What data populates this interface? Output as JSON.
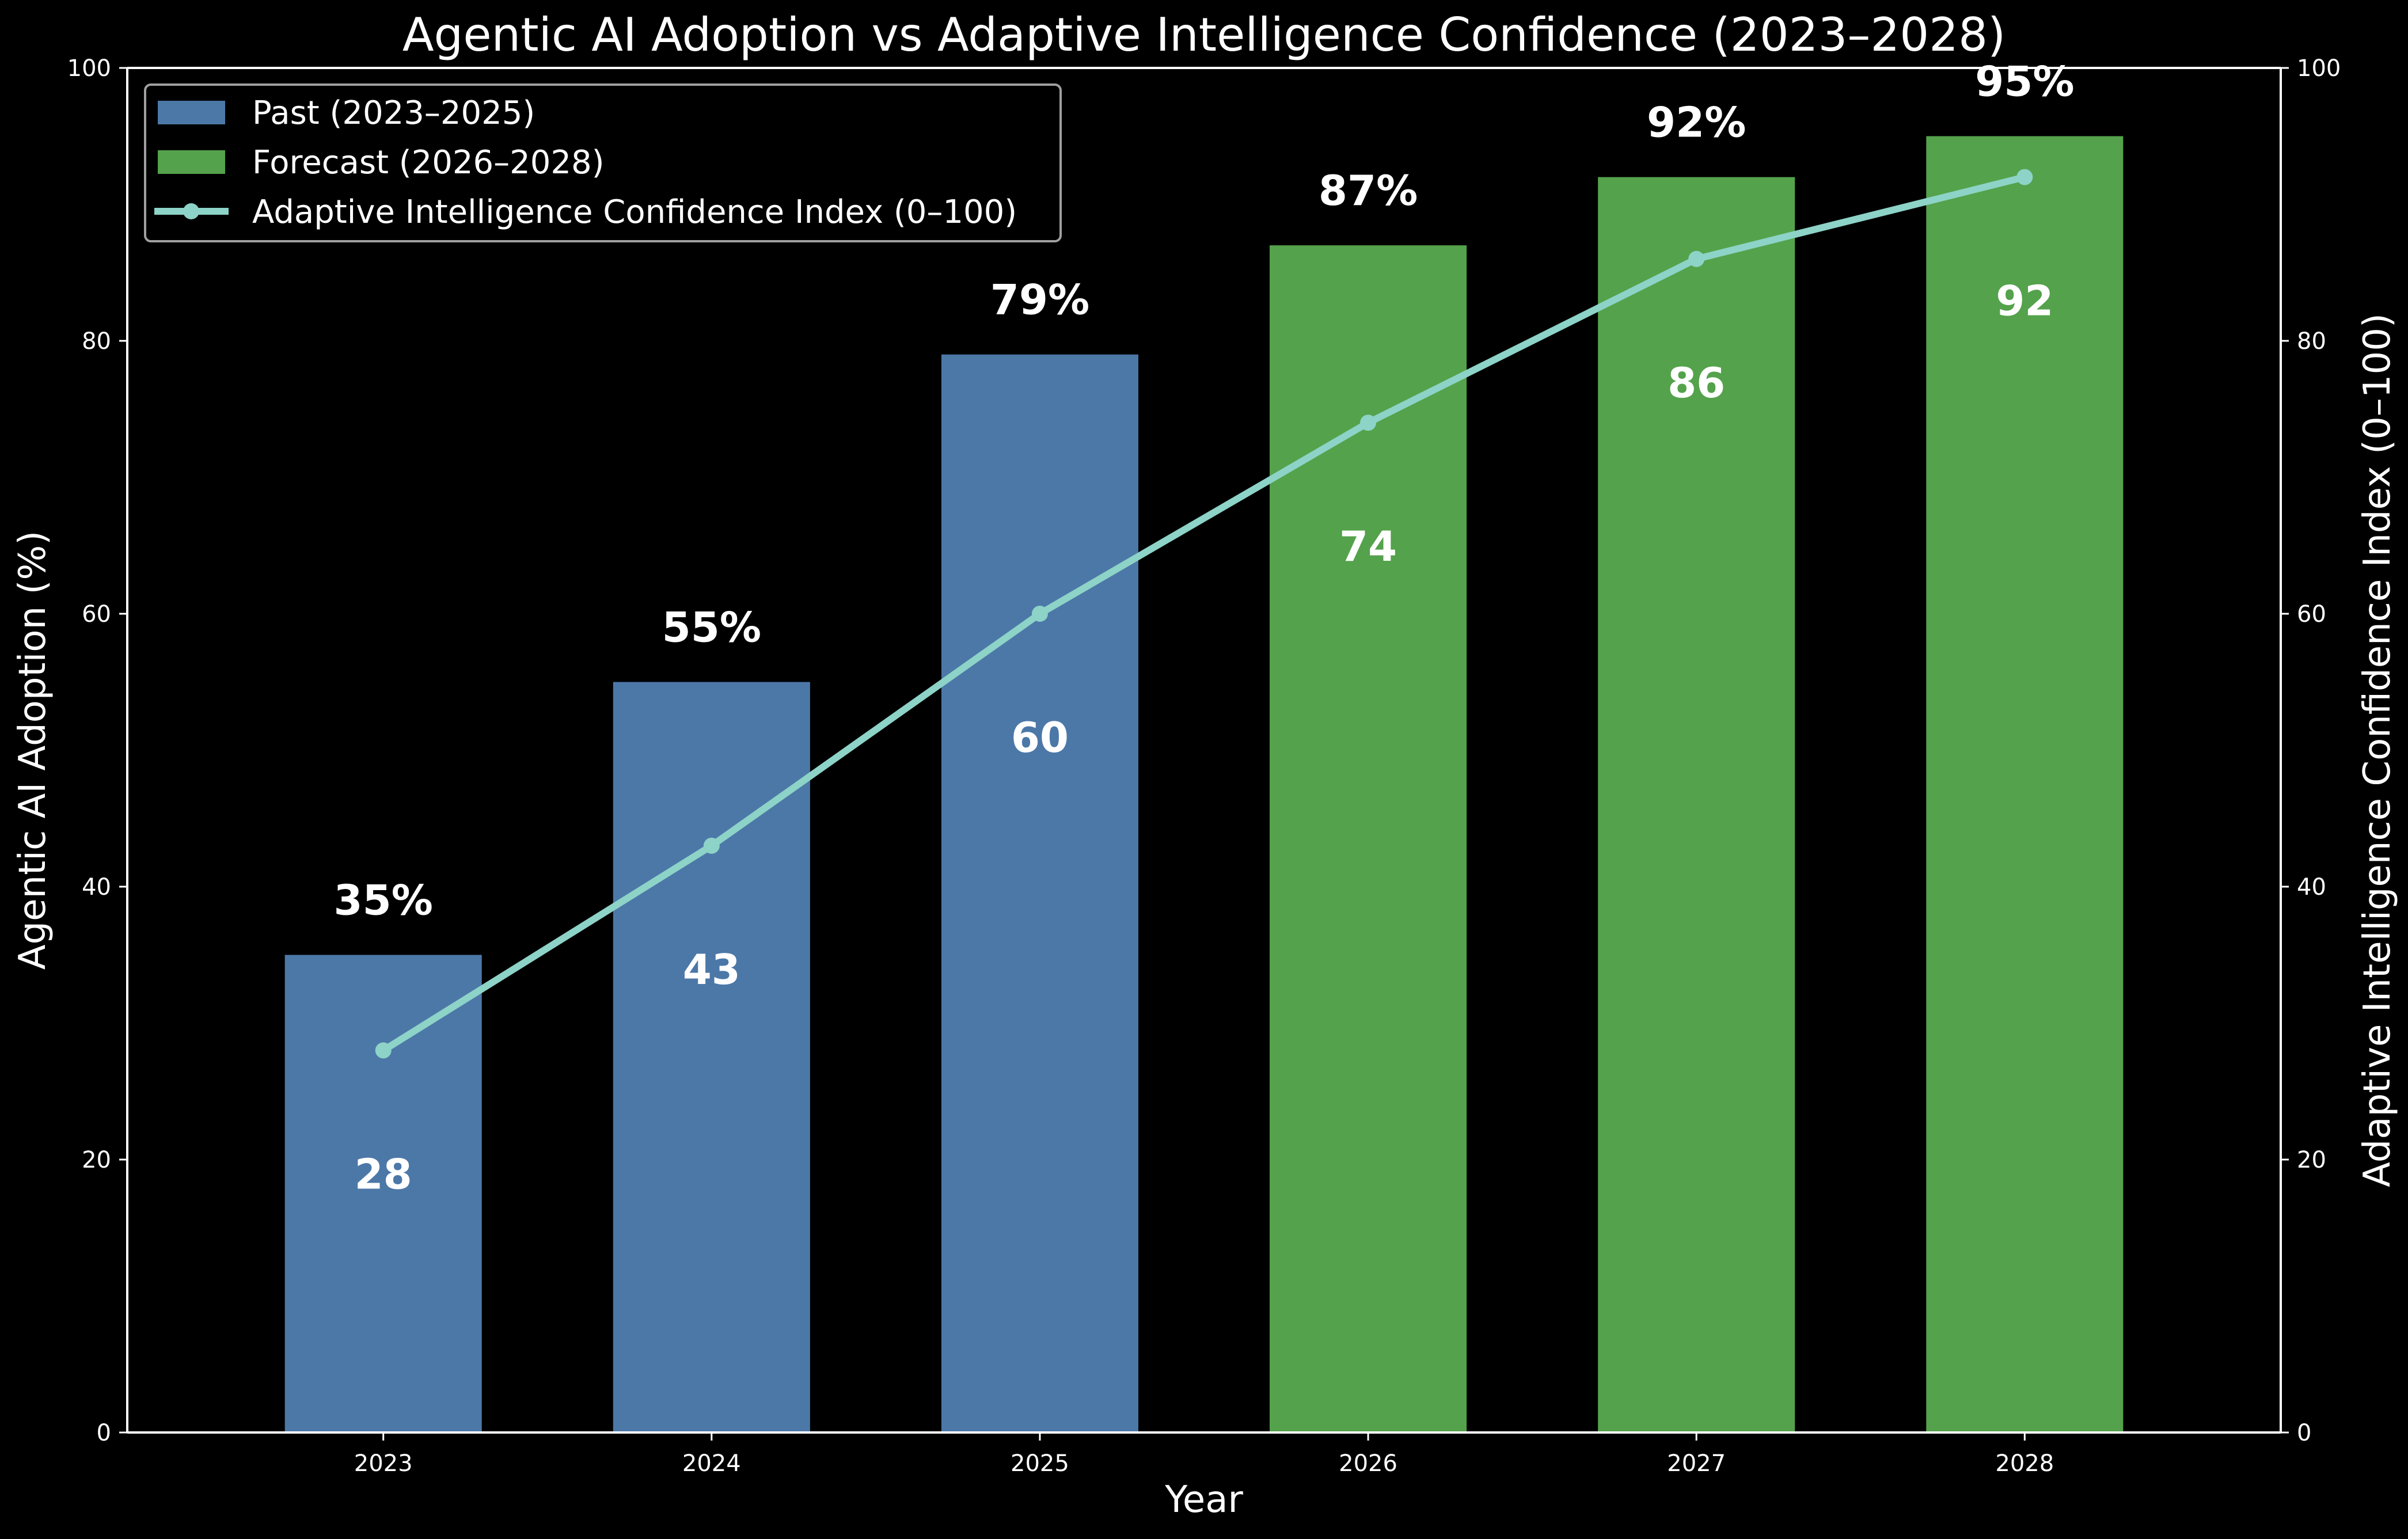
{
  "chart_data": {
    "type": "bar",
    "title": "Agentic AI Adoption vs Adaptive Intelligence Confidence (2023–2028)",
    "xlabel": "Year",
    "ylabel": "Agentic AI Adoption (%)",
    "y2label": "Adaptive Intelligence Confidence Index (0–100)",
    "categories": [
      "2023",
      "2024",
      "2025",
      "2026",
      "2027",
      "2028"
    ],
    "ylim": [
      0,
      100
    ],
    "y2lim": [
      0,
      100
    ],
    "yticks": [
      0,
      20,
      40,
      60,
      80,
      100
    ],
    "y2ticks": [
      0,
      20,
      40,
      60,
      80,
      100
    ],
    "grid": false,
    "legend_position": "top-left",
    "series": [
      {
        "name": "Agentic AI Adoption (%)",
        "type": "bar",
        "axis": "left",
        "values": [
          35,
          55,
          79,
          87,
          92,
          95
        ],
        "labels": [
          "35%",
          "55%",
          "79%",
          "87%",
          "92%",
          "95%"
        ],
        "groups": [
          "past",
          "past",
          "past",
          "forecast",
          "forecast",
          "forecast"
        ]
      },
      {
        "name": "Adaptive Intelligence Confidence Index (0–100)",
        "type": "line",
        "axis": "right",
        "marker": "circle",
        "values": [
          28,
          43,
          60,
          74,
          86,
          92
        ],
        "labels": [
          "28",
          "43",
          "60",
          "74",
          "86",
          "92"
        ]
      }
    ],
    "legend": [
      {
        "label": "Past (2023–2025)",
        "kind": "patch",
        "color": "#4c78a8"
      },
      {
        "label": "Forecast (2026–2028)",
        "kind": "patch",
        "color": "#54a24b"
      },
      {
        "label": "Adaptive Intelligence Confidence Index (0–100)",
        "kind": "line-marker",
        "color": "#8dd3c7"
      }
    ],
    "colors": {
      "past": "#4c78a8",
      "forecast": "#54a24b",
      "line": "#8dd3c7",
      "background": "#000000",
      "text": "#ffffff",
      "legend_border": "#a0a0a0"
    }
  }
}
